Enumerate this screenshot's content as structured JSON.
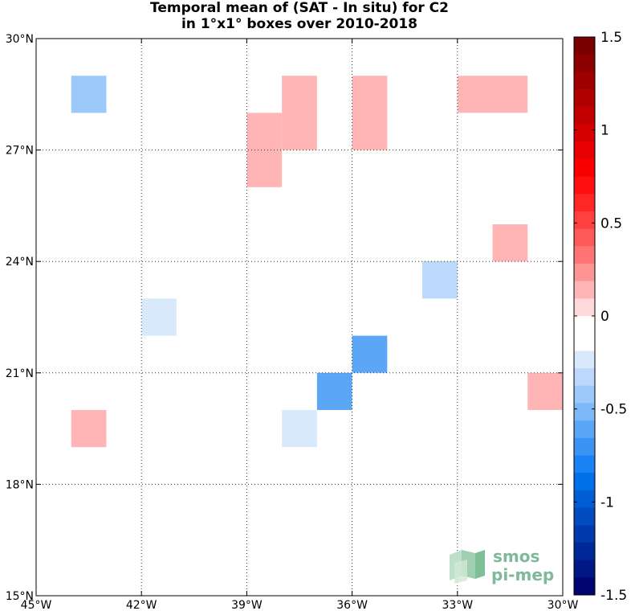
{
  "chart_data": {
    "type": "heatmap",
    "title": "Temporal mean of (SAT - In situ) for C2",
    "subtitle": "in 1°x1° boxes over 2010-2018",
    "xlim": [
      -45,
      -30
    ],
    "ylim": [
      15,
      30
    ],
    "x_ticks": [
      -45,
      -42,
      -39,
      -36,
      -33,
      -30
    ],
    "x_tick_labels": [
      "45°W",
      "42°W",
      "39°W",
      "36°W",
      "33°W",
      "30°W"
    ],
    "y_ticks": [
      15,
      18,
      21,
      24,
      27,
      30
    ],
    "y_tick_labels": [
      "15°N",
      "18°N",
      "21°N",
      "24°N",
      "27°N",
      "30°N"
    ],
    "grid": "dotted",
    "cell_size_deg": 1,
    "colorbar": {
      "range": [
        -1.5,
        1.5
      ],
      "levels": 30,
      "ticks": [
        1.5,
        1,
        0.5,
        0,
        -0.5,
        -1,
        -1.5
      ],
      "tick_labels": [
        "1.5",
        "1",
        "0.5",
        "0",
        "-0.5",
        "-1",
        "-1.5"
      ],
      "colors_top_to_bottom": [
        "#7a0000",
        "#8c0000",
        "#9e0000",
        "#b00000",
        "#c20000",
        "#d40000",
        "#e60000",
        "#f80000",
        "#ff0f0f",
        "#ff2626",
        "#ff4040",
        "#ff5959",
        "#ff7575",
        "#ff9494",
        "#ffb5b5",
        "#ffd9d9",
        "#ffffff",
        "#ffffff",
        "#d9e9fc",
        "#bcd9fb",
        "#9dc9fa",
        "#7db8f8",
        "#5ca6f6",
        "#3b94f4",
        "#1a82f2",
        "#0070e8",
        "#005ed4",
        "#004cc0",
        "#003aac",
        "#002898",
        "#001784",
        "#000570"
      ]
    },
    "cells": [
      {
        "lon": -42.5,
        "lat": 29.5,
        "value": -0.1
      },
      {
        "lon": -39.5,
        "lat": 29.5,
        "value": -0.1
      },
      {
        "lon": -38.5,
        "lat": 29.5,
        "value": -0.1
      },
      {
        "lon": -43.5,
        "lat": 28.5,
        "value": -0.45
      },
      {
        "lon": -37.5,
        "lat": 28.5,
        "value": 0.1
      },
      {
        "lon": -35.5,
        "lat": 28.5,
        "value": 0.1
      },
      {
        "lon": -32.5,
        "lat": 28.5,
        "value": 0.1
      },
      {
        "lon": -31.5,
        "lat": 28.5,
        "value": 0.1
      },
      {
        "lon": -30.5,
        "lat": 28.5,
        "value": -0.1
      },
      {
        "lon": -38.5,
        "lat": 27.5,
        "value": 0.1
      },
      {
        "lon": -37.5,
        "lat": 27.5,
        "value": 0.1
      },
      {
        "lon": -35.5,
        "lat": 27.5,
        "value": 0.1
      },
      {
        "lon": -38.5,
        "lat": 26.5,
        "value": 0.1
      },
      {
        "lon": -31.5,
        "lat": 25.5,
        "value": -0.1
      },
      {
        "lon": -39.5,
        "lat": 24.5,
        "value": -0.1
      },
      {
        "lon": -32.5,
        "lat": 24.5,
        "value": -0.1
      },
      {
        "lon": -31.5,
        "lat": 24.5,
        "value": 0.1
      },
      {
        "lon": -43.5,
        "lat": 23.5,
        "value": -0.1
      },
      {
        "lon": -41.5,
        "lat": 23.5,
        "value": -0.15
      },
      {
        "lon": -40.5,
        "lat": 23.5,
        "value": -0.15
      },
      {
        "lon": -33.5,
        "lat": 23.5,
        "value": -0.35
      },
      {
        "lon": -42.5,
        "lat": 22.5,
        "value": -0.1
      },
      {
        "lon": -41.5,
        "lat": 22.5,
        "value": -0.2
      },
      {
        "lon": -40.5,
        "lat": 22.5,
        "value": -0.1
      },
      {
        "lon": -35.5,
        "lat": 22.5,
        "value": -0.1
      },
      {
        "lon": -34.5,
        "lat": 22.5,
        "value": -0.1
      },
      {
        "lon": -42.5,
        "lat": 21.5,
        "value": -0.1
      },
      {
        "lon": -40.5,
        "lat": 21.5,
        "value": -0.1
      },
      {
        "lon": -36.5,
        "lat": 21.5,
        "value": -0.1
      },
      {
        "lon": -35.5,
        "lat": 21.5,
        "value": -0.6
      },
      {
        "lon": -42.5,
        "lat": 20.5,
        "value": -0.1
      },
      {
        "lon": -37.5,
        "lat": 20.5,
        "value": -0.1
      },
      {
        "lon": -36.5,
        "lat": 20.5,
        "value": -0.65
      },
      {
        "lon": -35.5,
        "lat": 20.5,
        "value": -0.1
      },
      {
        "lon": -30.5,
        "lat": 20.5,
        "value": 0.1
      },
      {
        "lon": -43.5,
        "lat": 19.5,
        "value": 0.1
      },
      {
        "lon": -37.5,
        "lat": 19.5,
        "value": -0.2
      },
      {
        "lon": -35.5,
        "lat": 19.5,
        "value": -0.1
      },
      {
        "lon": -34.5,
        "lat": 19.5,
        "value": -0.1
      },
      {
        "lon": -39.5,
        "lat": 18.5,
        "value": -0.1
      },
      {
        "lon": -38.5,
        "lat": 18.5,
        "value": -0.1
      },
      {
        "lon": -37.5,
        "lat": 18.5,
        "value": -0.1
      },
      {
        "lon": -40.5,
        "lat": 17.5,
        "value": -0.1
      },
      {
        "lon": -38.5,
        "lat": 17.5,
        "value": -0.1
      },
      {
        "lon": -41.5,
        "lat": 16.5,
        "value": -0.1
      },
      {
        "lon": -42.5,
        "lat": 15.5,
        "value": -0.1
      }
    ]
  },
  "logo": {
    "line1": "smos",
    "line2": "pi-mep"
  }
}
